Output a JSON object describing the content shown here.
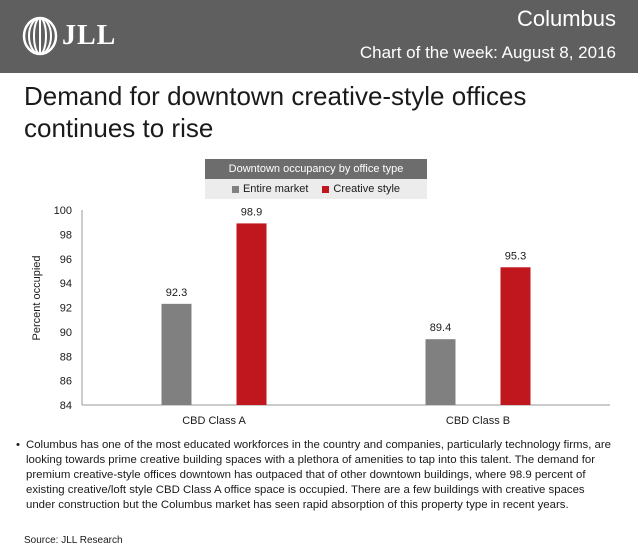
{
  "header": {
    "logo_text": "JLL",
    "city": "Columbus",
    "subtitle": "Chart of the week: August 8, 2016"
  },
  "headline": "Demand for downtown creative-style offices continues to rise",
  "colors": {
    "header_bg": "#5f5f5f",
    "entire_market": "#808080",
    "creative_style": "#c0171e"
  },
  "chart_data": {
    "type": "bar",
    "title": "Downtown occupancy by office type",
    "categories": [
      "CBD Class A",
      "CBD Class B"
    ],
    "series": [
      {
        "name": "Entire market",
        "values": [
          92.3,
          89.4
        ],
        "labels": [
          "92.3",
          "89.4"
        ]
      },
      {
        "name": "Creative style",
        "values": [
          98.9,
          95.3
        ],
        "labels": [
          "98.9",
          "95.3"
        ]
      }
    ],
    "ylabel": "Percent occupied",
    "ylim": [
      84,
      100
    ],
    "yticks": [
      "84",
      "86",
      "88",
      "90",
      "92",
      "94",
      "96",
      "98",
      "100"
    ],
    "legend_position": "top-center",
    "grid": false
  },
  "bullet": "Columbus has one of the most educated workforces in the country and companies, particularly technology firms, are looking towards prime creative building spaces with a plethora of amenities to tap into this talent. The demand for premium creative-style offices downtown has outpaced that of other downtown buildings, where 98.9 percent of existing creative/loft style CBD Class A office space is occupied. There are a few buildings with creative spaces under construction but the Columbus market has seen rapid absorption of this property type in recent years.",
  "source": "Source: JLL Research"
}
